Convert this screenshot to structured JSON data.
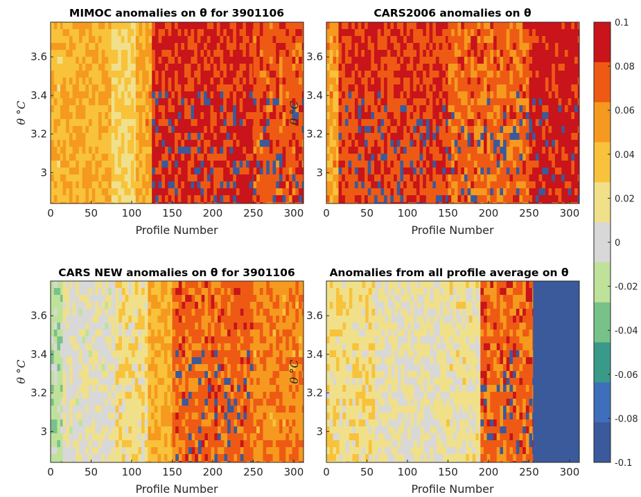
{
  "figure": {
    "colorbar": {
      "ticks": [
        "0.1",
        "0.08",
        "0.06",
        "0.04",
        "0.02",
        "0",
        "-0.02",
        "-0.04",
        "-0.06",
        "-0.08",
        "-0.1"
      ],
      "min": -0.1,
      "max": 0.1,
      "colors": [
        "#3a5a9c",
        "#3f6fba",
        "#3a9a8a",
        "#78c28a",
        "#bfe29a",
        "#d8d8d8",
        "#f0e08a",
        "#f8c23a",
        "#f59a1e",
        "#ee5a14",
        "#c8141a"
      ]
    }
  },
  "chart_data": [
    {
      "type": "heatmap",
      "title": "MIMOC anomalies on θ  for 3901106",
      "xlabel": "Profile Number",
      "ylabel": "θ °C",
      "xlim": [
        0,
        312
      ],
      "ylim": [
        2.84,
        3.78
      ],
      "xticks": [
        "0",
        "50",
        "100",
        "150",
        "200",
        "250",
        "300"
      ],
      "yticks": [
        "3",
        "3.2",
        "3.4",
        "3.6"
      ],
      "ytick_values": [
        3.0,
        3.2,
        3.4,
        3.6
      ],
      "bands": [
        {
          "x": [
            0,
            15
          ],
          "value": 0.04
        },
        {
          "x": [
            15,
            75
          ],
          "value": 0.045
        },
        {
          "x": [
            75,
            105
          ],
          "value": 0.025
        },
        {
          "x": [
            105,
            125
          ],
          "value": 0.05
        },
        {
          "x": [
            125,
            250
          ],
          "value": 0.085
        },
        {
          "x": [
            250,
            312
          ],
          "value": 0.075
        }
      ]
    },
    {
      "type": "heatmap",
      "title": "CARS2006 anomalies on θ",
      "xlabel": "Profile Number",
      "ylabel": "θ °C",
      "xlim": [
        0,
        312
      ],
      "ylim": [
        2.84,
        3.78
      ],
      "xticks": [
        "0",
        "50",
        "100",
        "150",
        "200",
        "250",
        "300"
      ],
      "yticks": [
        "3",
        "3.2",
        "3.4",
        "3.6"
      ],
      "ytick_values": [
        3.0,
        3.2,
        3.4,
        3.6
      ],
      "bands": [
        {
          "x": [
            0,
            15
          ],
          "value": 0.05
        },
        {
          "x": [
            15,
            150
          ],
          "value": 0.08
        },
        {
          "x": [
            150,
            250
          ],
          "value": 0.07
        },
        {
          "x": [
            250,
            312
          ],
          "value": 0.09
        }
      ]
    },
    {
      "type": "heatmap",
      "title": "CARS NEW anomalies on θ for 3901106",
      "xlabel": "Profile Number",
      "ylabel": "θ °C",
      "xlim": [
        0,
        312
      ],
      "ylim": [
        2.84,
        3.78
      ],
      "xticks": [
        "0",
        "50",
        "100",
        "150",
        "200",
        "250",
        "300"
      ],
      "yticks": [
        "3",
        "3.2",
        "3.4",
        "3.6"
      ],
      "ytick_values": [
        3.0,
        3.2,
        3.4,
        3.6
      ],
      "bands": [
        {
          "x": [
            0,
            15
          ],
          "value": -0.02
        },
        {
          "x": [
            15,
            80
          ],
          "value": 0.005
        },
        {
          "x": [
            80,
            120
          ],
          "value": 0.02
        },
        {
          "x": [
            120,
            150
          ],
          "value": 0.045
        },
        {
          "x": [
            150,
            250
          ],
          "value": 0.07
        },
        {
          "x": [
            250,
            312
          ],
          "value": 0.06
        }
      ]
    },
    {
      "type": "heatmap",
      "title": "Anomalies from all profile average on θ",
      "xlabel": "Profile Number",
      "ylabel": "θ °C",
      "xlim": [
        0,
        312
      ],
      "ylim": [
        2.84,
        3.78
      ],
      "xticks": [
        "0",
        "50",
        "100",
        "150",
        "200",
        "250",
        "300"
      ],
      "yticks": [
        "3",
        "3.2",
        "3.4",
        "3.6"
      ],
      "ytick_values": [
        3.0,
        3.2,
        3.4,
        3.6
      ],
      "bands": [
        {
          "x": [
            0,
            60
          ],
          "value": 0.02
        },
        {
          "x": [
            60,
            140
          ],
          "value": 0.01
        },
        {
          "x": [
            140,
            190
          ],
          "value": 0.015
        },
        {
          "x": [
            190,
            255
          ],
          "value": 0.07
        },
        {
          "x": [
            255,
            312
          ],
          "value": -0.1
        }
      ]
    }
  ]
}
